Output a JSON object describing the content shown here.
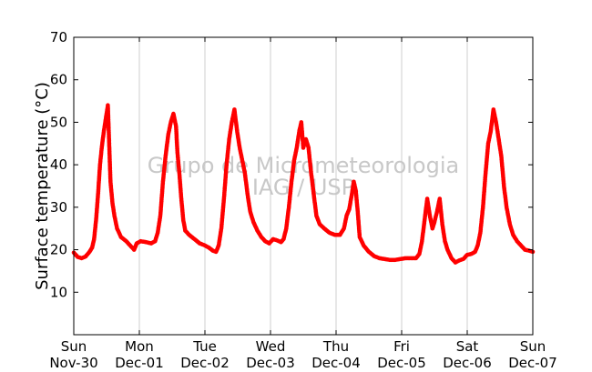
{
  "chart_data": {
    "type": "scatter",
    "title": "",
    "xlabel": "",
    "ylabel": "Surface temperature (°C)",
    "watermark": [
      "Grupo de Micrometeorologia",
      "IAG / USP"
    ],
    "ylim": [
      0,
      70
    ],
    "yticks": [
      "10",
      "20",
      "30",
      "40",
      "50",
      "60",
      "70"
    ],
    "xlim": [
      0,
      7
    ],
    "xticks": [
      {
        "day": "Sun",
        "date": "Nov-30"
      },
      {
        "day": "Mon",
        "date": "Dec-01"
      },
      {
        "day": "Tue",
        "date": "Dec-02"
      },
      {
        "day": "Wed",
        "date": "Dec-03"
      },
      {
        "day": "Thu",
        "date": "Dec-04"
      },
      {
        "day": "Fri",
        "date": "Dec-05"
      },
      {
        "day": "Sat",
        "date": "Dec-06"
      },
      {
        "day": "Sun",
        "date": "Dec-07"
      }
    ],
    "grid": "vertical",
    "marker_color": "#ff0000",
    "series": [
      {
        "points": [
          [
            0.0,
            19.3
          ],
          [
            0.06,
            18.3
          ],
          [
            0.12,
            18.0
          ],
          [
            0.18,
            18.4
          ],
          [
            0.24,
            19.5
          ],
          [
            0.28,
            20.5
          ],
          [
            0.31,
            22.5
          ],
          [
            0.34,
            27.0
          ],
          [
            0.37,
            33.0
          ],
          [
            0.4,
            40.0
          ],
          [
            0.43,
            44.5
          ],
          [
            0.46,
            48.0
          ],
          [
            0.49,
            51.0
          ],
          [
            0.52,
            54.0
          ],
          [
            0.54,
            45.0
          ],
          [
            0.56,
            36.0
          ],
          [
            0.59,
            31.0
          ],
          [
            0.62,
            28.0
          ],
          [
            0.66,
            25.0
          ],
          [
            0.72,
            23.0
          ],
          [
            0.8,
            22.0
          ],
          [
            0.86,
            21.0
          ],
          [
            0.92,
            20.0
          ],
          [
            0.96,
            21.5
          ],
          [
            1.02,
            22.0
          ],
          [
            1.1,
            21.8
          ],
          [
            1.18,
            21.5
          ],
          [
            1.24,
            22.0
          ],
          [
            1.28,
            24.0
          ],
          [
            1.32,
            28.0
          ],
          [
            1.36,
            36.0
          ],
          [
            1.4,
            42.0
          ],
          [
            1.44,
            47.0
          ],
          [
            1.48,
            50.0
          ],
          [
            1.52,
            52.0
          ],
          [
            1.56,
            49.0
          ],
          [
            1.58,
            43.0
          ],
          [
            1.61,
            38.0
          ],
          [
            1.64,
            32.0
          ],
          [
            1.67,
            27.0
          ],
          [
            1.7,
            24.5
          ],
          [
            1.76,
            23.5
          ],
          [
            1.84,
            22.5
          ],
          [
            1.92,
            21.5
          ],
          [
            2.0,
            21.0
          ],
          [
            2.06,
            20.5
          ],
          [
            2.12,
            19.8
          ],
          [
            2.17,
            19.5
          ],
          [
            2.21,
            21.0
          ],
          [
            2.25,
            25.0
          ],
          [
            2.29,
            32.0
          ],
          [
            2.33,
            40.0
          ],
          [
            2.37,
            46.0
          ],
          [
            2.41,
            50.0
          ],
          [
            2.45,
            53.0
          ],
          [
            2.49,
            48.0
          ],
          [
            2.53,
            44.0
          ],
          [
            2.57,
            41.0
          ],
          [
            2.61,
            38.0
          ],
          [
            2.65,
            33.0
          ],
          [
            2.69,
            29.0
          ],
          [
            2.74,
            26.5
          ],
          [
            2.8,
            24.5
          ],
          [
            2.86,
            23.0
          ],
          [
            2.92,
            22.0
          ],
          [
            2.98,
            21.5
          ],
          [
            3.04,
            22.5
          ],
          [
            3.1,
            22.2
          ],
          [
            3.16,
            21.8
          ],
          [
            3.2,
            22.5
          ],
          [
            3.24,
            25.0
          ],
          [
            3.28,
            30.0
          ],
          [
            3.32,
            36.0
          ],
          [
            3.36,
            41.0
          ],
          [
            3.4,
            44.0
          ],
          [
            3.44,
            48.0
          ],
          [
            3.47,
            50.0
          ],
          [
            3.5,
            44.0
          ],
          [
            3.54,
            46.0
          ],
          [
            3.58,
            44.0
          ],
          [
            3.62,
            38.0
          ],
          [
            3.66,
            33.0
          ],
          [
            3.7,
            28.0
          ],
          [
            3.75,
            26.0
          ],
          [
            3.82,
            25.0
          ],
          [
            3.9,
            24.0
          ],
          [
            3.98,
            23.5
          ],
          [
            4.06,
            23.5
          ],
          [
            4.12,
            25.0
          ],
          [
            4.16,
            28.0
          ],
          [
            4.2,
            29.5
          ],
          [
            4.24,
            33.0
          ],
          [
            4.27,
            36.0
          ],
          [
            4.3,
            34.0
          ],
          [
            4.33,
            29.0
          ],
          [
            4.36,
            23.0
          ],
          [
            4.42,
            21.0
          ],
          [
            4.5,
            19.5
          ],
          [
            4.58,
            18.5
          ],
          [
            4.66,
            18.0
          ],
          [
            4.74,
            17.8
          ],
          [
            4.82,
            17.6
          ],
          [
            4.9,
            17.6
          ],
          [
            4.98,
            17.8
          ],
          [
            5.06,
            18.0
          ],
          [
            5.14,
            18.0
          ],
          [
            5.22,
            18.0
          ],
          [
            5.27,
            19.0
          ],
          [
            5.31,
            22.0
          ],
          [
            5.35,
            27.0
          ],
          [
            5.39,
            32.0
          ],
          [
            5.43,
            28.0
          ],
          [
            5.47,
            25.0
          ],
          [
            5.5,
            26.5
          ],
          [
            5.54,
            29.0
          ],
          [
            5.58,
            32.0
          ],
          [
            5.62,
            26.0
          ],
          [
            5.66,
            22.0
          ],
          [
            5.7,
            20.0
          ],
          [
            5.76,
            18.0
          ],
          [
            5.82,
            17.0
          ],
          [
            5.88,
            17.5
          ],
          [
            5.94,
            17.8
          ],
          [
            6.0,
            18.8
          ],
          [
            6.06,
            19.0
          ],
          [
            6.12,
            19.5
          ],
          [
            6.16,
            21.0
          ],
          [
            6.2,
            24.0
          ],
          [
            6.24,
            30.0
          ],
          [
            6.28,
            38.0
          ],
          [
            6.32,
            45.0
          ],
          [
            6.36,
            48.0
          ],
          [
            6.4,
            53.0
          ],
          [
            6.44,
            50.0
          ],
          [
            6.48,
            46.0
          ],
          [
            6.52,
            42.0
          ],
          [
            6.56,
            35.0
          ],
          [
            6.6,
            30.0
          ],
          [
            6.65,
            26.0
          ],
          [
            6.7,
            23.5
          ],
          [
            6.76,
            22.0
          ],
          [
            6.82,
            21.0
          ],
          [
            6.88,
            20.0
          ],
          [
            6.94,
            19.8
          ],
          [
            7.0,
            19.5
          ]
        ]
      }
    ]
  }
}
